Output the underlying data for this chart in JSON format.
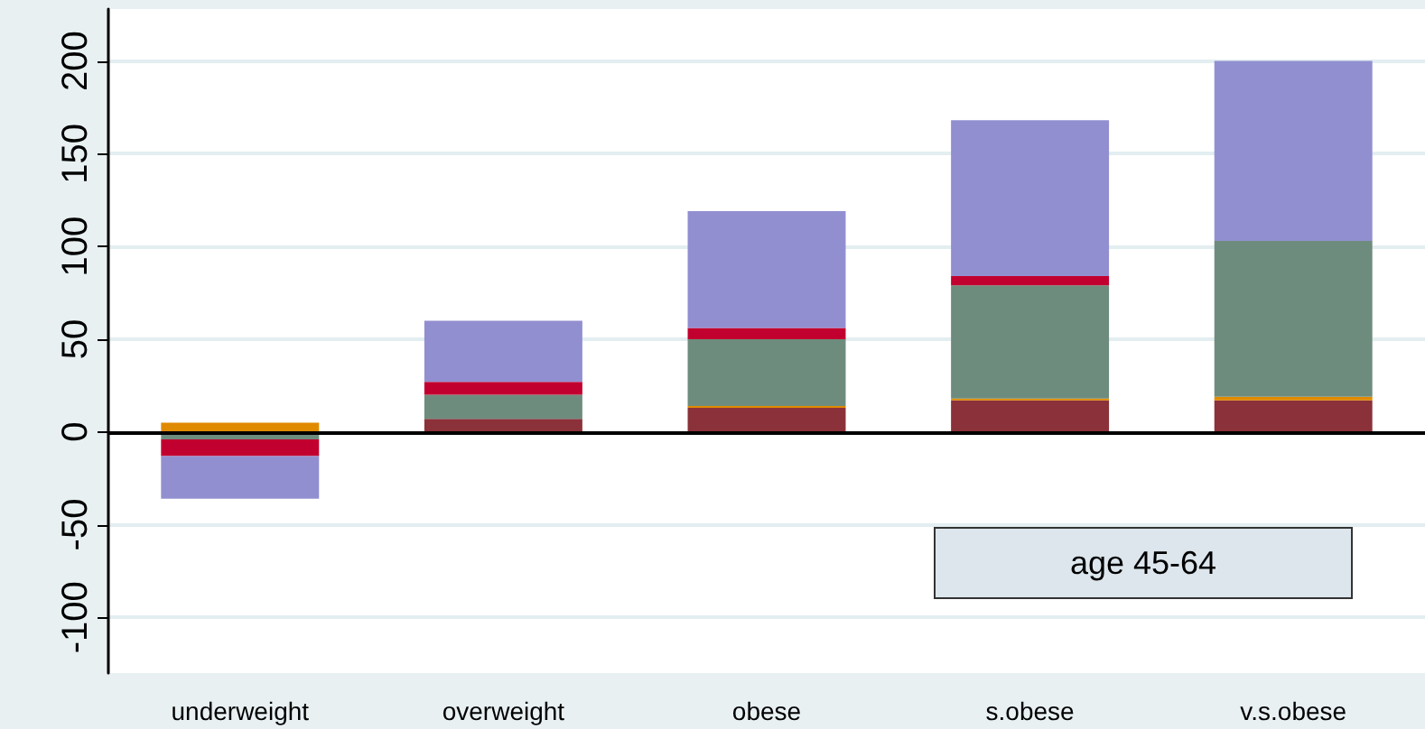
{
  "chart_data": {
    "type": "bar",
    "stacked": true,
    "categories": [
      "underweight",
      "overweight",
      "obese",
      "s.obese",
      "v.s.obese"
    ],
    "series": [
      {
        "color": "#8b3139",
        "values": [
          0,
          7,
          13,
          17,
          17
        ]
      },
      {
        "color": "#e08a00",
        "values": [
          5,
          0,
          1,
          1,
          2
        ]
      },
      {
        "color": "#6e8c7e",
        "values": [
          -4,
          13,
          36,
          61,
          84
        ]
      },
      {
        "color": "#c2002f",
        "values": [
          -9,
          7,
          6,
          5,
          0
        ]
      },
      {
        "color": "#928fd0",
        "values": [
          -23,
          33,
          63,
          84,
          97
        ]
      }
    ],
    "ylim": [
      -130,
      228
    ],
    "yticks": [
      -100,
      -50,
      0,
      50,
      100,
      150,
      200
    ],
    "grid": "y",
    "ref_lines": [
      {
        "axis": "y",
        "value": 0,
        "color": "#000000"
      }
    ],
    "annotations": [
      "age 45-64"
    ]
  }
}
